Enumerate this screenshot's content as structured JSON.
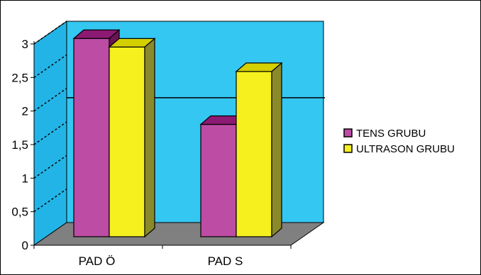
{
  "chart_data": {
    "type": "bar",
    "title": "",
    "xlabel": "",
    "ylabel": "",
    "categories": [
      "PAD Ö",
      "PAD S"
    ],
    "series": [
      {
        "name": "TENS GRUBU",
        "values": [
          3.0,
          1.7
        ]
      },
      {
        "name": "ULTRASON GRUBU",
        "values": [
          2.87,
          2.5
        ]
      }
    ],
    "ylim": [
      0,
      3
    ],
    "yticks": [
      {
        "value": 0,
        "label": "0"
      },
      {
        "value": 0.5,
        "label": "0,5"
      },
      {
        "value": 1,
        "label": "1"
      },
      {
        "value": 1.5,
        "label": "1,5"
      },
      {
        "value": 2,
        "label": "2"
      },
      {
        "value": 2.5,
        "label": "2,5"
      },
      {
        "value": 3,
        "label": "3"
      }
    ],
    "legend_position": "right",
    "colors": {
      "series": [
        "#bc4ca4",
        "#f5f01e"
      ],
      "series_top": [
        "#8c1a72",
        "#d4d000"
      ],
      "series_side": [
        "#6a1456",
        "#8a8a2a"
      ],
      "back_wall": "#33c7f2",
      "side_wall": "#22b4e6",
      "floor": "#808080"
    },
    "style": "3d-clustered-column",
    "reference_line_value": 1.86
  }
}
